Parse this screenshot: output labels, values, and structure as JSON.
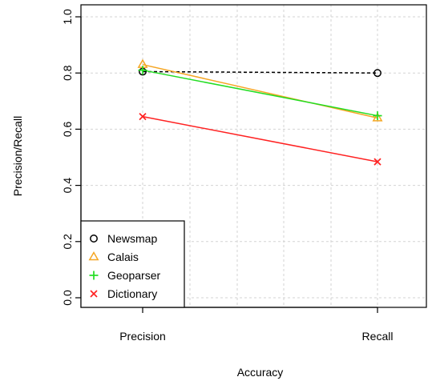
{
  "chart_data": {
    "type": "line",
    "title": "",
    "xlabel": "Accuracy",
    "ylabel": "Precision/Recall",
    "categories": [
      "Precision",
      "Recall"
    ],
    "ylim": [
      0,
      1
    ],
    "yticks": [
      "0.0",
      "0.2",
      "0.4",
      "0.6",
      "0.8",
      "1.0"
    ],
    "grid": true,
    "legend_position": "bottom-left",
    "series": [
      {
        "name": "Newsmap",
        "values": [
          0.805,
          0.8
        ],
        "color": "#000000",
        "marker": "circle",
        "line": "dashed"
      },
      {
        "name": "Calais",
        "values": [
          0.83,
          0.64
        ],
        "color": "#f5a623",
        "marker": "triangle",
        "line": "solid"
      },
      {
        "name": "Geoparser",
        "values": [
          0.81,
          0.648
        ],
        "color": "#22dd22",
        "marker": "plus",
        "line": "solid"
      },
      {
        "name": "Dictionary",
        "values": [
          0.645,
          0.484
        ],
        "color": "#ff2222",
        "marker": "cross",
        "line": "solid"
      }
    ]
  }
}
